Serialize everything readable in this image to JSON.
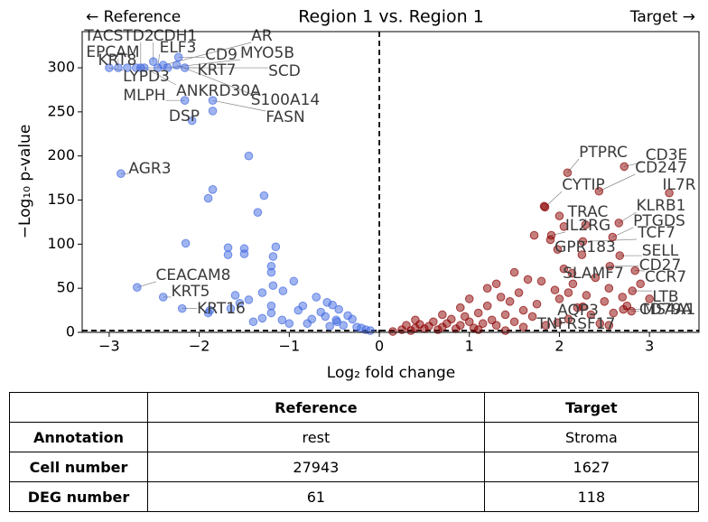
{
  "chart_data": {
    "type": "scatter",
    "title": "Region 1 vs. Region 1",
    "annotations": [
      "← Reference",
      "Target →"
    ],
    "x_label": "Log₂ fold change",
    "y_label": "−Log₁₀ p-value",
    "xlim": [
      -3.3,
      3.55
    ],
    "ylim": [
      0,
      341
    ],
    "xticks": [
      {
        "value": -3,
        "label": "−3"
      },
      {
        "value": -2,
        "label": "−2"
      },
      {
        "value": -1,
        "label": "−1"
      },
      0,
      1,
      2,
      3
    ],
    "yticks": [
      0,
      50,
      100,
      150,
      200,
      250,
      300
    ],
    "vline": 0,
    "hline": 2,
    "series": [
      {
        "color": "#4169e1",
        "x": [
          -2.65,
          -2.51,
          -2.4,
          -2.9,
          -2.46,
          -2.23,
          -2.35,
          -2.8,
          -2.16,
          -2.7,
          -3,
          -2.61,
          -2.25,
          -2.16,
          -1.85,
          -2.08,
          -2.87,
          -2.69,
          -2.4,
          -2.19,
          -1.85,
          -1.45,
          -1.85,
          -1.9,
          -1.28,
          -1.35,
          -2.15,
          -1.68,
          -1.68,
          -1.5,
          -1.5,
          -1.15,
          -1.18,
          -1.2,
          -1.2,
          -1.18,
          -1.07,
          -1.2,
          -1.45,
          -1.65,
          -1.88,
          -1.55,
          -1.4,
          -1.3,
          -1.2,
          -1.08,
          -1.0,
          -0.9,
          -0.85,
          -0.75,
          -0.7,
          -0.65,
          -0.6,
          -0.58,
          -0.52,
          -0.47,
          -0.45,
          -0.4,
          -0.35,
          -0.3,
          -0.25,
          -0.2,
          -0.15,
          -0.1,
          -1.6,
          -1.9,
          -0.95,
          -1.3,
          -0.8,
          -0.55,
          -0.48
        ],
        "y": [
          300,
          307,
          303,
          300,
          300,
          312,
          300,
          300,
          300,
          300,
          300,
          300,
          303,
          263,
          263,
          240,
          180,
          51,
          40,
          27,
          251,
          200,
          162,
          152,
          155,
          136,
          101,
          96,
          88,
          95,
          89,
          97,
          86,
          75,
          68,
          53,
          47,
          30,
          37,
          27,
          25,
          33,
          12,
          16,
          22,
          14,
          10,
          25,
          30,
          15,
          40,
          23,
          18,
          34,
          31,
          12,
          26,
          8,
          19,
          15,
          6,
          5,
          3,
          2,
          42,
          22,
          58,
          45,
          10,
          7,
          14
        ],
        "labels": [
          "TACSTD2",
          "CDH1",
          "AR",
          "EPCAM",
          "ELF3",
          "CD9",
          "MYO5B",
          "KRT8",
          "KRT7",
          "SCD",
          "LYPD3",
          "ANKRD30A",
          "S100A14",
          "MLPH",
          "FASN",
          "DSP",
          "AGR3",
          "CEACAM8",
          "KRT5",
          "KRT16",
          null,
          null,
          null,
          null,
          null,
          null,
          null,
          null,
          null,
          null,
          null,
          null,
          null,
          null,
          null,
          null,
          null,
          null,
          null,
          null,
          null,
          null,
          null,
          null,
          null,
          null,
          null,
          null,
          null,
          null,
          null,
          null,
          null,
          null,
          null,
          null,
          null,
          null,
          null,
          null,
          null,
          null,
          null,
          null,
          null,
          null,
          null,
          null,
          null,
          null,
          null
        ]
      },
      {
        "color": "#8b0000",
        "x": [
          2.09,
          2.72,
          2.44,
          3.22,
          1.84,
          2.66,
          2.29,
          2.59,
          1.91,
          2.26,
          1.98,
          2.67,
          2.56,
          2.14,
          2.84,
          2.81,
          2.26,
          2.71,
          2.8,
          1.98,
          0.15,
          0.25,
          0.35,
          0.4,
          0.45,
          0.5,
          0.55,
          0.6,
          0.65,
          0.7,
          0.75,
          0.8,
          0.85,
          0.9,
          0.95,
          1.0,
          1.05,
          1.1,
          1.15,
          1.2,
          1.25,
          1.3,
          1.35,
          1.4,
          1.45,
          1.5,
          1.55,
          1.6,
          1.65,
          1.7,
          1.75,
          1.8,
          1.85,
          1.9,
          1.95,
          2.0,
          2.05,
          2.1,
          2.15,
          2.2,
          2.25,
          2.3,
          2.35,
          2.4,
          2.45,
          2.5,
          2.55,
          2.6,
          2.7,
          2.75,
          2.9,
          3.0,
          1.83,
          2.0,
          1.72,
          1.3,
          1.0,
          0.9,
          1.5,
          1.2,
          0.7,
          2.05,
          1.6,
          2.1,
          0.4,
          1.1,
          2.55,
          1.4,
          0.3
        ],
        "y": [
          181,
          188,
          160,
          158,
          142,
          124,
          122,
          108,
          110,
          103,
          94,
          87,
          75,
          67,
          70,
          47,
          29,
          26,
          24,
          11,
          1,
          3,
          2,
          5,
          9,
          4,
          7,
          12,
          3,
          6,
          10,
          15,
          4,
          8,
          18,
          12,
          5,
          22,
          10,
          30,
          14,
          8,
          40,
          20,
          35,
          12,
          45,
          25,
          60,
          18,
          32,
          58,
          8,
          105,
          48,
          38,
          72,
          15,
          55,
          28,
          88,
          42,
          20,
          62,
          10,
          35,
          50,
          22,
          40,
          30,
          55,
          38,
          143,
          132,
          110,
          55,
          38,
          28,
          68,
          50,
          20,
          120,
          6,
          45,
          14,
          3,
          8,
          2,
          8
        ],
        "labels": [
          "PTPRC",
          "CD3E",
          "CD247",
          "IL7R",
          "CYTIP",
          "KLRB1",
          "TRAC",
          "PTGDS",
          "IL2RG",
          "TCF7",
          "GPR183",
          "SELL",
          "CD27",
          "SLAMF7",
          "CCR7",
          "LTB",
          "AQP3",
          "MS4A1",
          "CD79A",
          "TNFRSF17",
          null,
          null,
          null,
          null,
          null,
          null,
          null,
          null,
          null,
          null,
          null,
          null,
          null,
          null,
          null,
          null,
          null,
          null,
          null,
          null,
          null,
          null,
          null,
          null,
          null,
          null,
          null,
          null,
          null,
          null,
          null,
          null,
          null,
          null,
          null,
          null,
          null,
          null,
          null,
          null,
          null,
          null,
          null,
          null,
          null,
          null,
          null,
          null,
          null,
          null,
          null,
          null,
          null,
          null,
          null,
          null,
          null,
          null,
          null,
          null,
          null,
          null,
          null,
          null,
          null
        ]
      }
    ]
  },
  "table": {
    "header": [
      "Reference",
      "Target"
    ],
    "rows": [
      {
        "label": "Annotation",
        "values": [
          "rest",
          "Stroma"
        ]
      },
      {
        "label": "Cell number",
        "values": [
          27943,
          1627
        ]
      },
      {
        "label": "DEG number",
        "values": [
          61,
          118
        ]
      }
    ]
  }
}
